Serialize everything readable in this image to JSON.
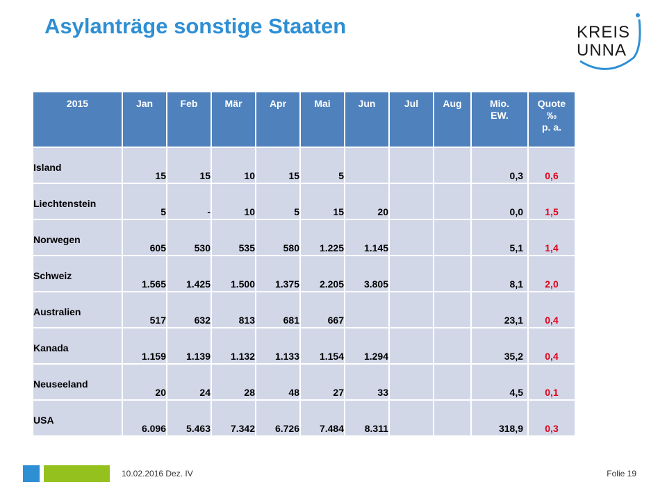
{
  "title": "Asylanträge sonstige Staaten",
  "logo": {
    "line1": "KREIS",
    "line2": "UNNA",
    "colors": {
      "text": "#1a1a1a",
      "arc": "#2e8fd4"
    }
  },
  "table": {
    "headers": [
      "2015",
      "Jan",
      "Feb",
      "Mär",
      "Apr",
      "Mai",
      "Jun",
      "Jul",
      "Aug",
      "Mio. EW.",
      "Quote ‰ p. a."
    ],
    "header_lines": {
      "mio": [
        "Mio.",
        "EW."
      ],
      "quote": [
        "Quote",
        "‰",
        "p. a."
      ]
    },
    "rows": [
      {
        "country": "Island",
        "jan": "15",
        "feb": "15",
        "mar": "10",
        "apr": "15",
        "mai": "5",
        "jun": "",
        "jul": "",
        "aug": "",
        "mio": "0,3",
        "quote": "0,6"
      },
      {
        "country": "Liechtenstein",
        "jan": "5",
        "feb": "-",
        "mar": "10",
        "apr": "5",
        "mai": "15",
        "jun": "20",
        "jul": "",
        "aug": "",
        "mio": "0,0",
        "quote": "1,5"
      },
      {
        "country": "Norwegen",
        "jan": "605",
        "feb": "530",
        "mar": "535",
        "apr": "580",
        "mai": "1.225",
        "jun": "1.145",
        "jul": "",
        "aug": "",
        "mio": "5,1",
        "quote": "1,4"
      },
      {
        "country": "Schweiz",
        "jan": "1.565",
        "feb": "1.425",
        "mar": "1.500",
        "apr": "1.375",
        "mai": "2.205",
        "jun": "3.805",
        "jul": "",
        "aug": "",
        "mio": "8,1",
        "quote": "2,0"
      },
      {
        "country": "Australien",
        "jan": "517",
        "feb": "632",
        "mar": "813",
        "apr": "681",
        "mai": "667",
        "jun": "",
        "jul": "",
        "aug": "",
        "mio": "23,1",
        "quote": "0,4"
      },
      {
        "country": "Kanada",
        "jan": "1.159",
        "feb": "1.139",
        "mar": "1.132",
        "apr": "1.133",
        "mai": "1.154",
        "jun": "1.294",
        "jul": "",
        "aug": "",
        "mio": "35,2",
        "quote": "0,4"
      },
      {
        "country": "Neuseeland",
        "jan": "20",
        "feb": "24",
        "mar": "28",
        "apr": "48",
        "mai": "27",
        "jun": "33",
        "jul": "",
        "aug": "",
        "mio": "4,5",
        "quote": "0,1"
      },
      {
        "country": "USA",
        "jan": "6.096",
        "feb": "5.463",
        "mar": "7.342",
        "apr": "6.726",
        "mai": "7.484",
        "jun": "8.311",
        "jul": "",
        "aug": "",
        "mio": "318,9",
        "quote": "0,3"
      }
    ]
  },
  "footer": {
    "date_text": "10.02.2016  Dez. IV",
    "slide_label": "Folie 19"
  },
  "colors": {
    "title": "#2e8fd4",
    "header_bg": "#4f81bd",
    "row_bg": "#d2d7e8",
    "quote_text": "#e0001a",
    "footer_blue": "#2e8fd4",
    "footer_green": "#95c11f"
  }
}
